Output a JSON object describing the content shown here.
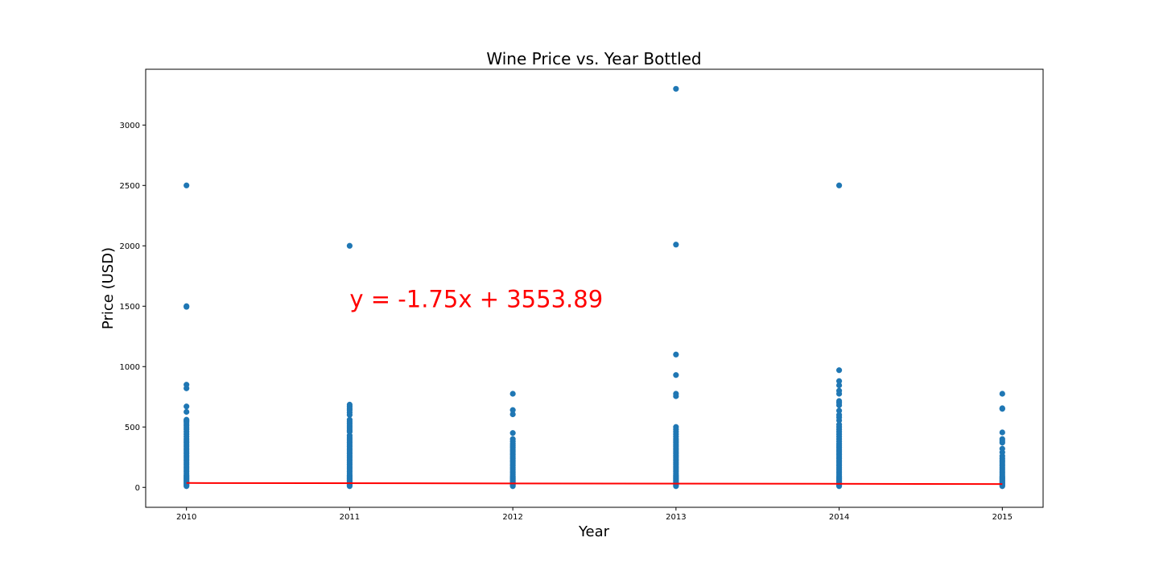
{
  "chart_data": {
    "type": "scatter",
    "title": "Wine Price vs. Year Bottled",
    "xlabel": "Year",
    "ylabel": "Price (USD)",
    "xlim": [
      2009.75,
      2015.25
    ],
    "ylim": [
      -165,
      3462
    ],
    "xticks": [
      2010,
      2011,
      2012,
      2013,
      2014,
      2015
    ],
    "yticks": [
      0,
      500,
      1000,
      1500,
      2000,
      2500,
      3000
    ],
    "grid": false,
    "point_color": "#1f77b4",
    "line_color": "#ff0000",
    "annotation": {
      "text": "y = -1.75x + 3553.89",
      "x": 2011,
      "y": 1500
    },
    "regression": {
      "slope": -1.75,
      "intercept": 3553.89,
      "x_range": [
        2010,
        2015
      ]
    },
    "series": [
      {
        "values": [
          {
            "year": 2010,
            "prices": [
              2500,
              1500,
              1495,
              850,
              820,
              670,
              625,
              560,
              550,
              540,
              525,
              510,
              495,
              480,
              460,
              440,
              420,
              400,
              385,
              370,
              355,
              340,
              325,
              310,
              295,
              280,
              265,
              250,
              235,
              220,
              205,
              190,
              175,
              160,
              145,
              130,
              115,
              100,
              90,
              80,
              70,
              60,
              50,
              40,
              30,
              20,
              10
            ]
          },
          {
            "year": 2011,
            "prices": [
              2000,
              685,
              670,
              655,
              640,
              620,
              600,
              560,
              545,
              530,
              515,
              500,
              485,
              470,
              460,
              430,
              415,
              400,
              385,
              370,
              355,
              340,
              325,
              310,
              295,
              280,
              265,
              250,
              235,
              220,
              205,
              190,
              175,
              160,
              145,
              130,
              115,
              100,
              90,
              80,
              70,
              60,
              50,
              40,
              30,
              20,
              10
            ]
          },
          {
            "year": 2012,
            "prices": [
              775,
              640,
              605,
              450,
              400,
              380,
              360,
              345,
              330,
              315,
              300,
              285,
              270,
              255,
              240,
              225,
              210,
              195,
              180,
              165,
              150,
              135,
              120,
              105,
              90,
              80,
              70,
              60,
              50,
              40,
              30,
              20,
              10
            ]
          },
          {
            "year": 2013,
            "prices": [
              3300,
              2010,
              1100,
              930,
              775,
              755,
              500,
              480,
              460,
              440,
              420,
              400,
              385,
              370,
              355,
              340,
              325,
              310,
              295,
              280,
              265,
              250,
              235,
              220,
              205,
              190,
              175,
              160,
              145,
              130,
              115,
              100,
              90,
              80,
              70,
              60,
              50,
              40,
              30,
              20,
              10
            ]
          },
          {
            "year": 2014,
            "prices": [
              2500,
              970,
              880,
              845,
              800,
              775,
              715,
              700,
              680,
              635,
              600,
              580,
              555,
              520,
              500,
              480,
              460,
              440,
              420,
              400,
              380,
              360,
              345,
              330,
              315,
              300,
              285,
              270,
              255,
              240,
              225,
              210,
              195,
              180,
              165,
              150,
              135,
              120,
              105,
              90,
              80,
              70,
              60,
              50,
              40,
              30,
              20,
              10
            ]
          },
          {
            "year": 2015,
            "prices": [
              775,
              655,
              650,
              455,
              400,
              385,
              370,
              320,
              290,
              260,
              240,
              225,
              210,
              195,
              180,
              165,
              150,
              135,
              120,
              105,
              90,
              80,
              70,
              60,
              50,
              40,
              30,
              20,
              10
            ]
          }
        ]
      }
    ]
  }
}
